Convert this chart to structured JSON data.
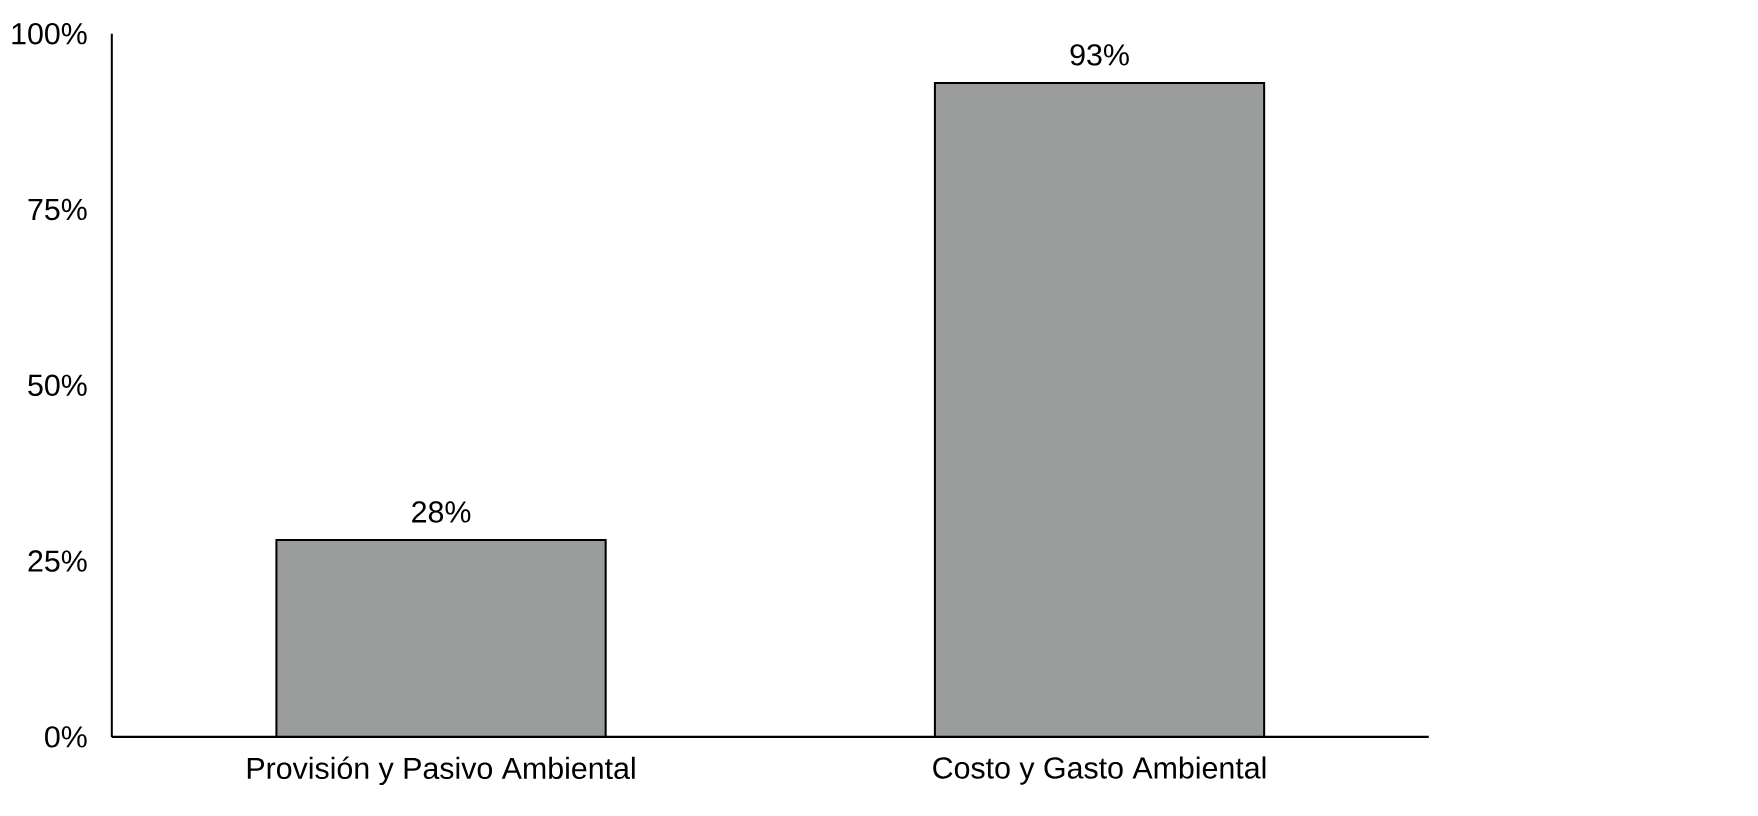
{
  "chart_data": {
    "type": "bar",
    "categories": [
      "Provisión y Pasivo Ambiental",
      "Costo y Gasto Ambiental"
    ],
    "values": [
      28,
      93
    ],
    "value_labels": [
      "28%",
      "93%"
    ],
    "color": "#9b9d9d",
    "ylim": [
      0,
      100
    ],
    "yticks": [
      {
        "value": 0,
        "label": "0%"
      },
      {
        "value": 25,
        "label": "25%"
      },
      {
        "value": 50,
        "label": "50%"
      },
      {
        "value": 75,
        "label": "75%"
      },
      {
        "value": 100,
        "label": "100%"
      }
    ]
  }
}
